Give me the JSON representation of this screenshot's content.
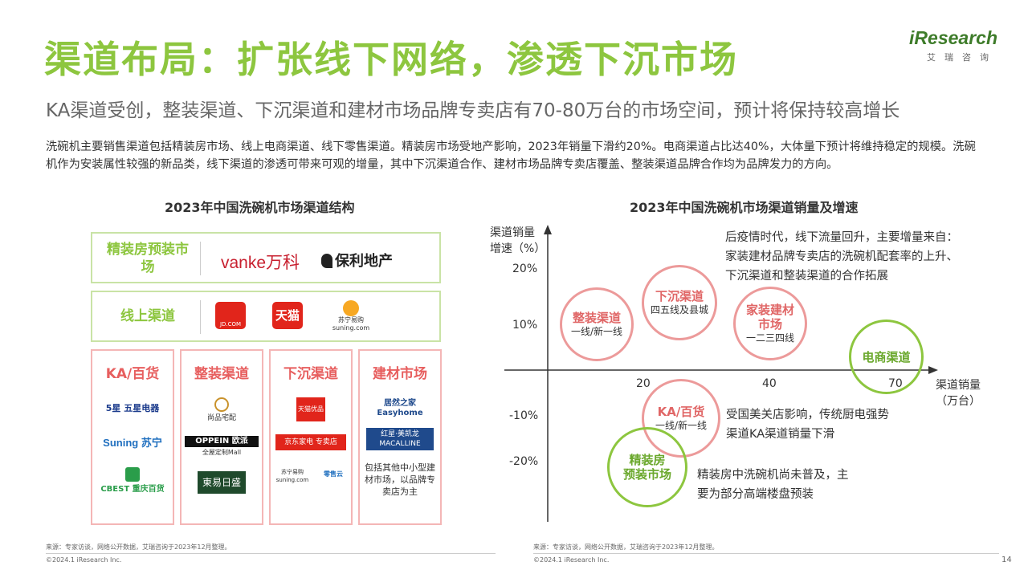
{
  "header": {
    "title": "渠道布局：扩张线下网络，渗透下沉市场",
    "subtitle": "KA渠道受创，整装渠道、下沉渠道和建材市场品牌专卖店有70-80万台的市场空间，预计将保持较高增长",
    "description": "洗碗机主要销售渠道包括精装房市场、线上电商渠道、线下零售渠道。精装房市场受地产影响，2023年销量下滑约20%。电商渠道占比达40%，大体量下预计将维持稳定的规模。洗碗机作为安装属性较强的新品类，线下渠道的渗透可带来可观的增量，其中下沉渠道合作、建材市场品牌专卖店覆盖、整装渠道品牌合作均为品牌发力的方向。"
  },
  "logo": {
    "word": "iResearch",
    "cn": "艾瑞咨询"
  },
  "left_panel": {
    "title": "2023年中国洗碗机市场渠道结构",
    "rows": [
      {
        "label": "精装房预装市场",
        "brands": [
          "vanke万科",
          "保利地产"
        ]
      },
      {
        "label": "线上渠道",
        "brands": [
          "JD.COM",
          "天猫",
          "苏宁易购 suning.com"
        ]
      }
    ],
    "columns": [
      {
        "label": "KA/百货",
        "brands": [
          "5星 五星电器",
          "Suning 苏宁",
          "CBEST 重庆百货"
        ]
      },
      {
        "label": "整装渠道",
        "brands": [
          "尚品宅配",
          "OPPEIN 欧派",
          "全屋定制Mall",
          "東易日盛"
        ]
      },
      {
        "label": "下沉渠道",
        "brands": [
          "天猫优品",
          "京东家电 专卖店",
          "苏宁易购 suning.com",
          "零售云"
        ]
      },
      {
        "label": "建材市场",
        "brands": [
          "居然之家 Easyhome",
          "红星·美凯龙 MACALLINE"
        ],
        "note": "包括其他中小型建材市场，以品牌专卖店为主"
      }
    ],
    "source": "来源：专家访谈，网络公开数据，艾瑞咨询于2023年12月整理。",
    "copyright": "©2024.1 iResearch Inc."
  },
  "right_panel": {
    "title": "2023年中国洗碗机市场渠道销量及增速",
    "y_axis_label": "渠道销量\n增速（%）",
    "x_axis_label": "渠道销量\n（万台）",
    "y_ticks": [
      "20%",
      "10%",
      "-10%",
      "-20%"
    ],
    "x_ticks": [
      "20",
      "40",
      "70"
    ],
    "bubbles": [
      {
        "name": "整装渠道",
        "sub": "一线/新一线"
      },
      {
        "name": "下沉渠道",
        "sub": "四五线及县城"
      },
      {
        "name": "家装建材\n市场",
        "sub": "一二三四线"
      },
      {
        "name": "电商渠道",
        "sub": ""
      },
      {
        "name": "KA/百货",
        "sub": "一线/新一线"
      },
      {
        "name": "精装房\n预装市场",
        "sub": ""
      }
    ],
    "notes": [
      "后疫情时代，线下流量回升，主要增量来自：家装建材品牌专卖店的洗碗机配套率的上升、下沉渠道和整装渠道的合作拓展",
      "受国美关店影响，传统厨电强势渠道KA渠道销量下滑",
      "精装房中洗碗机尚未普及，主要为部分高端楼盘预装"
    ],
    "source": "来源：专家访谈，网络公开数据，艾瑞咨询于2023年12月整理。",
    "copyright": "©2024.1 iResearch Inc.",
    "page_number": "14"
  },
  "colors": {
    "accent_green": "#8dc63f",
    "accent_red": "#e75f5f"
  }
}
